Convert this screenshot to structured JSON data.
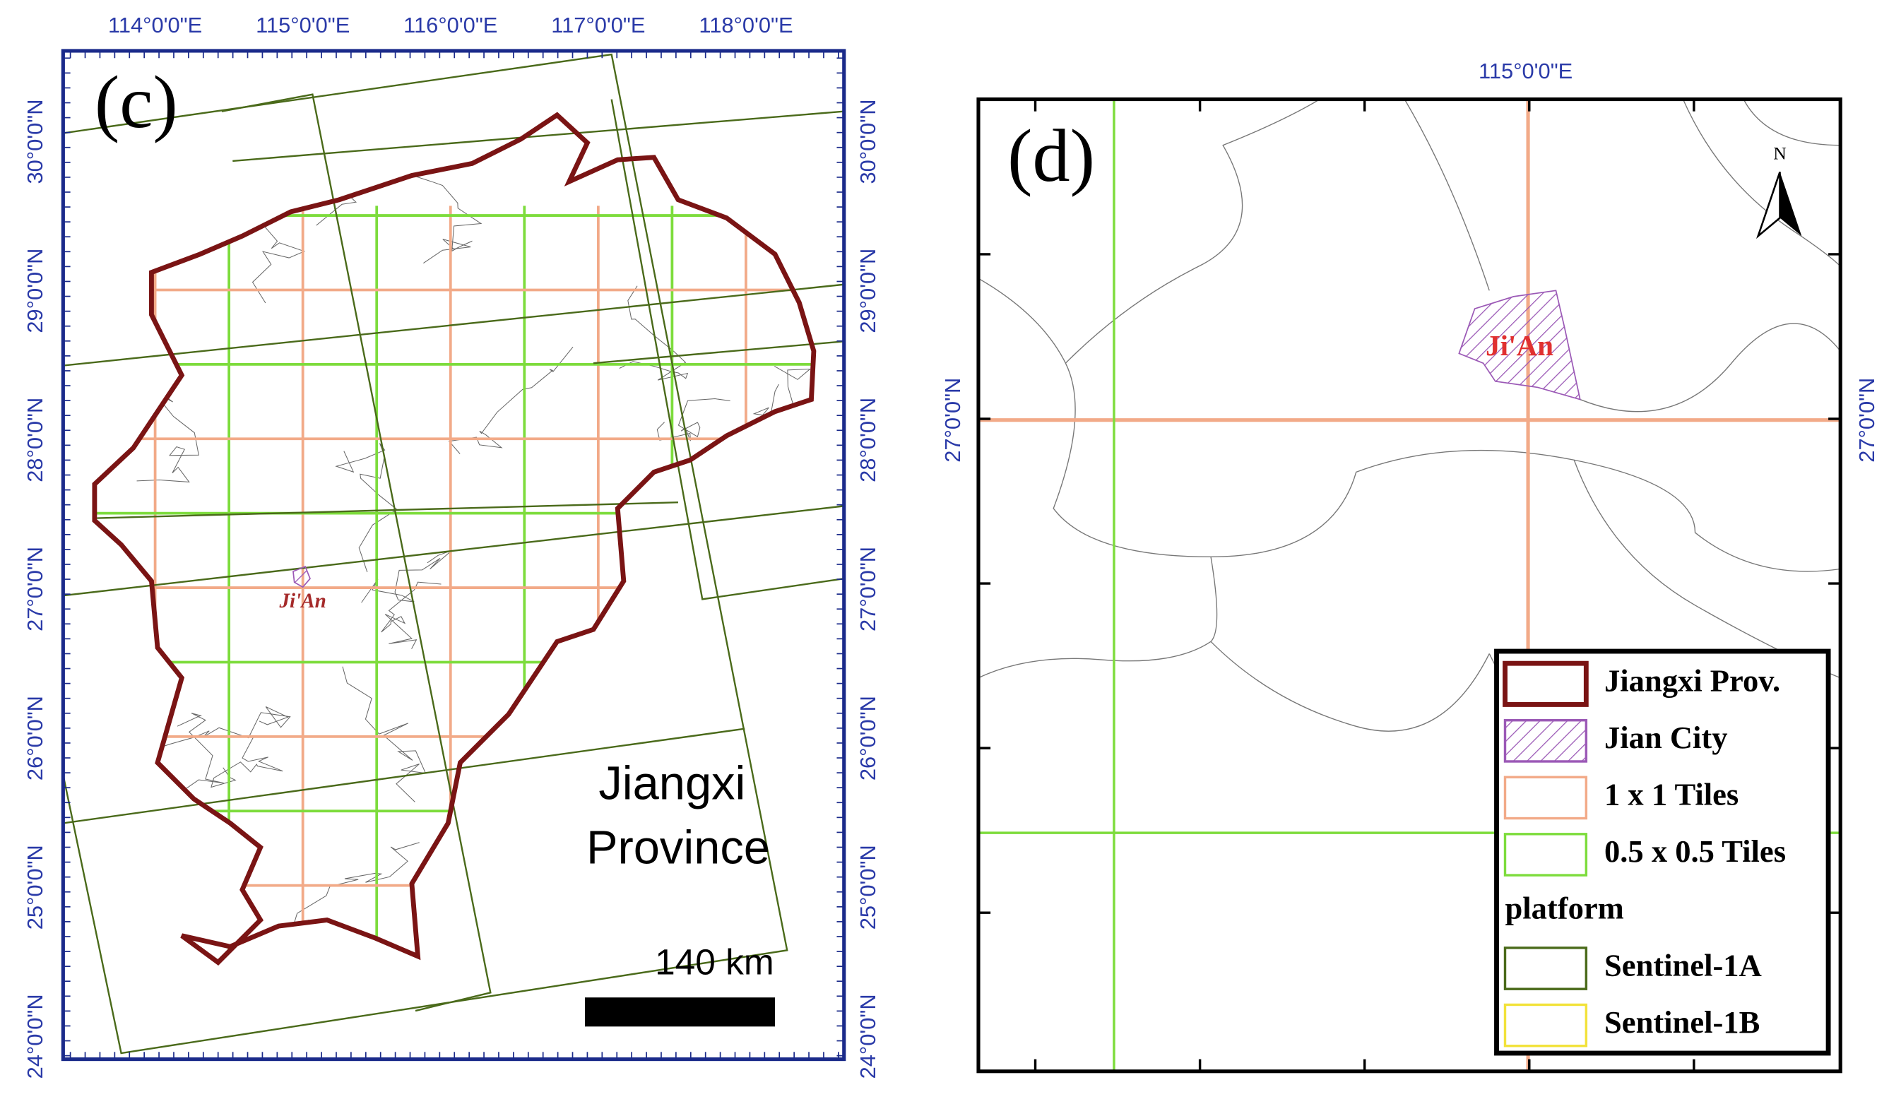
{
  "panel_c": {
    "label": "(c)",
    "lon_labels": [
      "114°0'0\"E",
      "115°0'0\"E",
      "116°0'0\"E",
      "117°0'0\"E",
      "118°0'0\"E"
    ],
    "lat_labels": [
      "30°0'0\"N",
      "29°0'0\"N",
      "28°0'0\"N",
      "27°0'0\"N",
      "26°0'0\"N",
      "25°0'0\"N",
      "24°0'0\"N"
    ],
    "title_lines": [
      "Jiangxi",
      "Province"
    ],
    "scale_bar": "140 km",
    "city_label": "Ji'An"
  },
  "panel_d": {
    "label": "(d)",
    "lon_labels": [
      "115°0'0\"E"
    ],
    "lat_labels": [
      "27°0'0\"N"
    ],
    "city_label": "Ji'An",
    "north": "N",
    "legend": {
      "entries": [
        {
          "label": "Jiangxi Prov.",
          "color": "#7a1414"
        },
        {
          "label": "Jian City",
          "color": "#9b59b6"
        },
        {
          "label": "1 x 1 Tiles",
          "color": "#f2aa88"
        },
        {
          "label": "0.5 x 0.5 Tiles",
          "color": "#7ddc3c"
        }
      ],
      "group": {
        "title": "platform",
        "entries": [
          {
            "label": "Sentinel-1A",
            "color": "#4a6a1a"
          },
          {
            "label": "Sentinel-1B",
            "color": "#f2e23a"
          }
        ]
      }
    }
  }
}
